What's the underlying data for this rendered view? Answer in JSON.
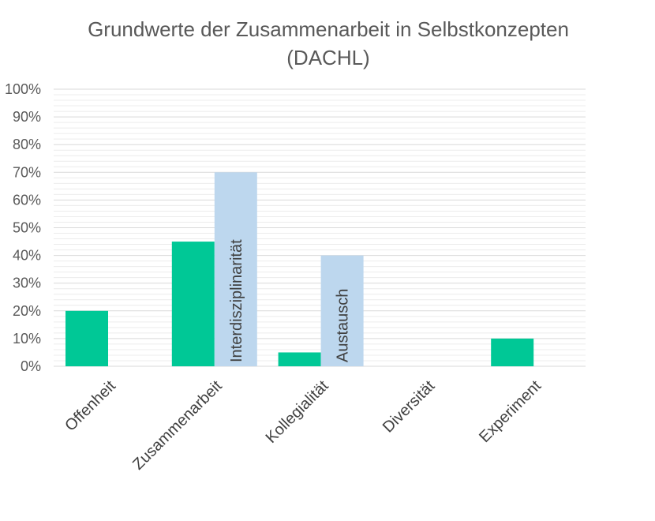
{
  "chart_data": {
    "type": "bar",
    "title": "Grundwerte der Zusammenarbeit in Selbstkonzepten (DACHL)",
    "title_lines": [
      "Grundwerte der Zusammenarbeit in Selbstkonzepten",
      "(DACHL)"
    ],
    "categories": [
      "Offenheit",
      "Zusammenarbeit",
      "Kollegialität",
      "Diversität",
      "Experiment"
    ],
    "ylim": [
      0,
      100
    ],
    "yticks": [
      "0%",
      "10%",
      "20%",
      "30%",
      "40%",
      "50%",
      "60%",
      "70%",
      "80%",
      "90%",
      "100%"
    ],
    "grid": true,
    "series": [
      {
        "values": [
          20,
          45,
          5,
          0,
          10
        ],
        "color": "#00c896",
        "labels": [
          "",
          "",
          "",
          "",
          ""
        ]
      },
      {
        "values": [
          0,
          70,
          40,
          0,
          0
        ],
        "color": "#bdd7ee",
        "labels": [
          "",
          "Interdisziplinarität",
          "Austausch",
          "",
          ""
        ]
      }
    ]
  }
}
